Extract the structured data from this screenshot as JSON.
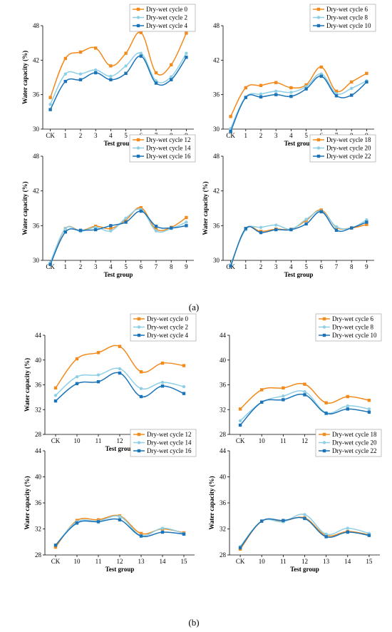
{
  "panel_labels": [
    "(a)",
    "(b)"
  ],
  "colors": [
    "#f28a1c",
    "#8ecfe6",
    "#1b73b8"
  ],
  "chart_data": [
    {
      "type": "line",
      "panel": "a",
      "xlabel": "Test group",
      "ylabel": "Water capacity (%)",
      "categories": [
        "CK",
        "1",
        "2",
        "3",
        "4",
        "5",
        "6",
        "7",
        "8",
        "9"
      ],
      "ylim": [
        30,
        48
      ],
      "yticks": [
        30,
        36,
        42,
        48
      ],
      "legend_position": "top-right",
      "series": [
        {
          "name": "Dry-wet cycle 0",
          "values": [
            35.5,
            42.3,
            43.4,
            44.1,
            41.0,
            43.2,
            46.8,
            39.8,
            41.2,
            46.7
          ]
        },
        {
          "name": "Dry-wet cycle 2",
          "values": [
            34.3,
            39.6,
            39.6,
            40.3,
            39.2,
            41.0,
            43.2,
            38.4,
            39.1,
            43.2
          ]
        },
        {
          "name": "Dry-wet cycle 4",
          "values": [
            33.4,
            38.3,
            38.6,
            39.8,
            38.6,
            39.7,
            42.7,
            38.0,
            38.6,
            42.5
          ]
        }
      ]
    },
    {
      "type": "line",
      "panel": "a",
      "xlabel": "Test group",
      "ylabel": "",
      "categories": [
        "CK",
        "1",
        "2",
        "3",
        "4",
        "5",
        "6",
        "7",
        "8",
        "9"
      ],
      "ylim": [
        30,
        48
      ],
      "yticks": [
        30,
        36,
        42,
        48
      ],
      "legend_position": "top-right",
      "series": [
        {
          "name": "Dry-wet cycle 6",
          "values": [
            32.2,
            37.2,
            37.6,
            38.1,
            37.2,
            37.7,
            40.8,
            36.6,
            38.2,
            39.7
          ]
        },
        {
          "name": "Dry-wet cycle 8",
          "values": [
            30.1,
            35.6,
            36.1,
            36.6,
            36.4,
            37.4,
            39.6,
            36.2,
            37.1,
            38.4
          ]
        },
        {
          "name": "Dry-wet cycle 10",
          "values": [
            29.6,
            35.5,
            35.6,
            36.0,
            35.7,
            37.0,
            39.2,
            35.8,
            35.9,
            38.2
          ]
        }
      ]
    },
    {
      "type": "line",
      "panel": "a",
      "xlabel": "Test group",
      "ylabel": "Water capacity (%)",
      "categories": [
        "CK",
        "1",
        "2",
        "3",
        "4",
        "5",
        "6",
        "7",
        "8",
        "9"
      ],
      "ylim": [
        30,
        48
      ],
      "yticks": [
        30,
        36,
        42,
        48
      ],
      "legend_position": "top-right",
      "series": [
        {
          "name": "Dry-wet cycle 12",
          "values": [
            29.3,
            35.5,
            35.1,
            35.9,
            35.5,
            37.0,
            39.1,
            35.4,
            35.7,
            37.4
          ]
        },
        {
          "name": "Dry-wet cycle 14",
          "values": [
            29.6,
            35.5,
            35.0,
            35.7,
            35.1,
            37.3,
            38.8,
            35.1,
            35.5,
            36.6
          ]
        },
        {
          "name": "Dry-wet cycle 16",
          "values": [
            29.3,
            34.9,
            35.2,
            35.3,
            36.0,
            36.6,
            38.5,
            35.9,
            35.6,
            36.0
          ]
        }
      ]
    },
    {
      "type": "line",
      "panel": "a",
      "xlabel": "Test group",
      "ylabel": "Water capacity (%)",
      "categories": [
        "CK",
        "1",
        "2",
        "3",
        "4",
        "5",
        "6",
        "7",
        "8",
        "9"
      ],
      "ylim": [
        30,
        48
      ],
      "yticks": [
        30,
        36,
        42,
        48
      ],
      "legend_position": "top-right",
      "series": [
        {
          "name": "Dry-wet cycle 18",
          "values": [
            29.0,
            35.5,
            35.0,
            35.4,
            35.4,
            36.9,
            38.7,
            35.7,
            35.6,
            36.2
          ]
        },
        {
          "name": "Dry-wet cycle 20",
          "values": [
            29.3,
            35.3,
            35.7,
            36.1,
            35.4,
            37.1,
            38.5,
            35.8,
            35.6,
            37.0
          ]
        },
        {
          "name": "Dry-wet cycle 22",
          "values": [
            29.0,
            35.5,
            34.8,
            35.3,
            35.3,
            36.3,
            38.4,
            35.2,
            35.6,
            36.6
          ]
        }
      ]
    },
    {
      "type": "line",
      "panel": "b",
      "xlabel": "Test group",
      "ylabel": "Water capacity (%)",
      "categories": [
        "CK",
        "10",
        "11",
        "12",
        "13",
        "14",
        "15"
      ],
      "ylim": [
        28,
        44
      ],
      "yticks": [
        28,
        32,
        36,
        40,
        44
      ],
      "legend_position": "top-right",
      "series": [
        {
          "name": "Dry-wet cycle 0",
          "values": [
            35.5,
            40.2,
            41.2,
            42.2,
            38.1,
            39.5,
            39.1
          ]
        },
        {
          "name": "Dry-wet cycle 2",
          "values": [
            34.3,
            37.3,
            37.6,
            38.6,
            35.4,
            36.4,
            35.7
          ]
        },
        {
          "name": "Dry-wet cycle 4",
          "values": [
            33.4,
            36.2,
            36.5,
            37.9,
            34.1,
            35.8,
            34.6
          ]
        }
      ]
    },
    {
      "type": "line",
      "panel": "b",
      "xlabel": "",
      "ylabel": "",
      "categories": [
        "CK",
        "10",
        "11",
        "12",
        "13",
        "14",
        "15"
      ],
      "ylim": [
        28,
        44
      ],
      "yticks": [
        28,
        32,
        36,
        40,
        44
      ],
      "legend_position": "top-right",
      "series": [
        {
          "name": "Dry-wet cycle 6",
          "values": [
            32.1,
            35.2,
            35.5,
            36.1,
            33.1,
            34.1,
            33.5
          ]
        },
        {
          "name": "Dry-wet cycle 8",
          "values": [
            30.2,
            33.2,
            34.2,
            34.9,
            31.5,
            32.6,
            32.1
          ]
        },
        {
          "name": "Dry-wet cycle 10",
          "values": [
            29.5,
            33.2,
            33.6,
            34.4,
            31.4,
            32.1,
            31.6
          ]
        }
      ]
    },
    {
      "type": "line",
      "panel": "b",
      "xlabel": "Test group",
      "ylabel": "Water capacity (%)",
      "categories": [
        "CK",
        "10",
        "11",
        "12",
        "13",
        "14",
        "15"
      ],
      "ylim": [
        28,
        44
      ],
      "yticks": [
        28,
        32,
        36,
        40,
        44
      ],
      "legend_position": "top-right",
      "series": [
        {
          "name": "Dry-wet cycle 12",
          "values": [
            29.2,
            33.3,
            33.4,
            34.0,
            31.3,
            32.0,
            31.4
          ]
        },
        {
          "name": "Dry-wet cycle 14",
          "values": [
            29.5,
            33.1,
            33.2,
            33.9,
            31.0,
            32.1,
            31.3
          ]
        },
        {
          "name": "Dry-wet cycle 16",
          "values": [
            29.5,
            32.9,
            33.1,
            33.4,
            30.9,
            31.5,
            31.2
          ]
        }
      ]
    },
    {
      "type": "line",
      "panel": "b",
      "xlabel": "Test group",
      "ylabel": "Water capacity (%)",
      "categories": [
        "CK",
        "10",
        "11",
        "12",
        "13",
        "14",
        "15"
      ],
      "ylim": [
        28,
        44
      ],
      "yticks": [
        28,
        32,
        36,
        40,
        44
      ],
      "legend_position": "top-right",
      "series": [
        {
          "name": "Dry-wet cycle 18",
          "values": [
            28.9,
            33.2,
            33.2,
            33.7,
            31.0,
            31.6,
            31.1
          ]
        },
        {
          "name": "Dry-wet cycle 20",
          "values": [
            29.3,
            33.2,
            33.1,
            34.2,
            31.2,
            32.1,
            31.3
          ]
        },
        {
          "name": "Dry-wet cycle 22",
          "values": [
            29.1,
            33.2,
            33.3,
            33.6,
            30.8,
            31.5,
            31.0
          ]
        }
      ]
    }
  ]
}
